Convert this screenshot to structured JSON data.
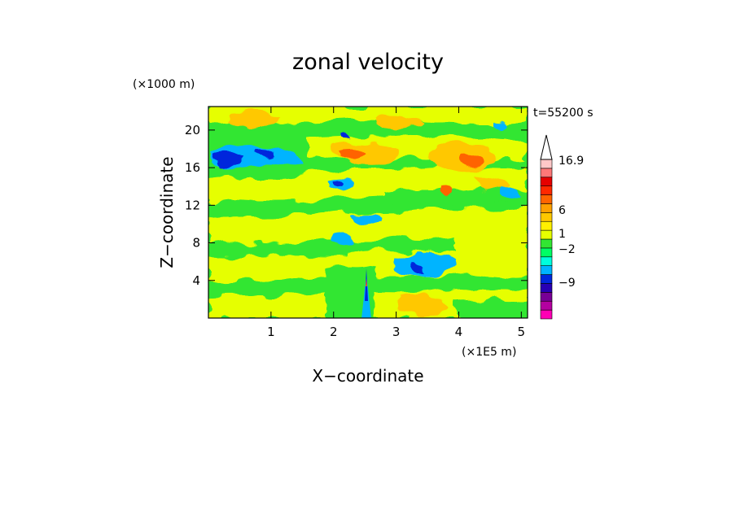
{
  "chart_data": {
    "type": "heatmap",
    "title": "zonal velocity",
    "xlabel": "X−coordinate",
    "ylabel": "Z−coordinate",
    "x_unit": "(×1E5 m)",
    "y_unit": "(×1000 m)",
    "time_label": "t=55200 s",
    "xlim": [
      0,
      5.1
    ],
    "ylim": [
      0,
      22.5
    ],
    "x_ticks": [
      "1",
      "2",
      "3",
      "4",
      "5"
    ],
    "x_tick_values": [
      1,
      2,
      3,
      4,
      5
    ],
    "y_ticks": [
      "4",
      "8",
      "12",
      "16",
      "20"
    ],
    "y_tick_values": [
      4,
      8,
      12,
      16,
      20
    ],
    "colorbar": {
      "max_label": "16.9",
      "labels": [
        "16.9",
        "6",
        "1",
        "−2",
        "−9"
      ],
      "colors": [
        "#ff00b4",
        "#b400a0",
        "#780096",
        "#2800b4",
        "#0028dc",
        "#00b4ff",
        "#00ffdc",
        "#00ff64",
        "#32e632",
        "#e6ff00",
        "#fff000",
        "#ffc800",
        "#ffa000",
        "#ff6400",
        "#ff2800",
        "#e60000",
        "#ff7878",
        "#ffc8c8"
      ]
    },
    "grid": false,
    "legend_position": "right"
  }
}
